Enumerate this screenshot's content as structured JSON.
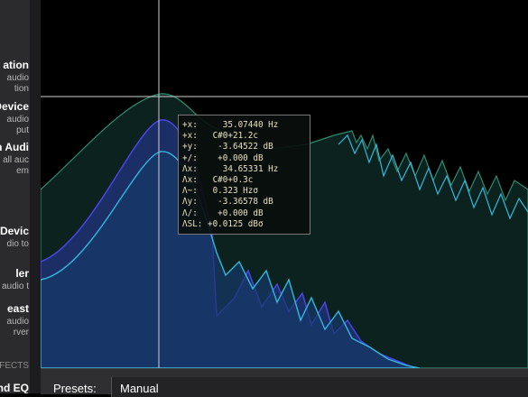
{
  "sidebar": {
    "items": [
      {
        "title": "ation",
        "lines": [
          "audio",
          "tion"
        ]
      },
      {
        "title": "Device",
        "lines": [
          "audio",
          "put"
        ]
      },
      {
        "title": "n Audi",
        "lines": [
          "all auc",
          "em"
        ]
      },
      {
        "title": "Devic",
        "lines": [
          "dio to"
        ]
      },
      {
        "title": "ler",
        "lines": [
          "audio t"
        ]
      },
      {
        "title": "east",
        "lines": [
          "audio",
          "rver"
        ]
      }
    ],
    "section": "FECTS",
    "bottom_item": "nd EQ"
  },
  "readout": {
    "lines": [
      "+x:     35.07440 Hz",
      "+x:   C#0+21.2c",
      "+y:    -3.64522 dB",
      "+/:    +0.000 dB",
      "Λx:     34.65331 Hz",
      "Λx:   C#0+0.3c",
      "Λ~:   0.323 Hzσ",
      "Λy:    -3.36578 dB",
      "Λ/:    +0.000 dB",
      "ΛSL: +0.0125 dBσ"
    ]
  },
  "footer": {
    "presets_label": "Presets:",
    "preset": "Manual"
  }
}
